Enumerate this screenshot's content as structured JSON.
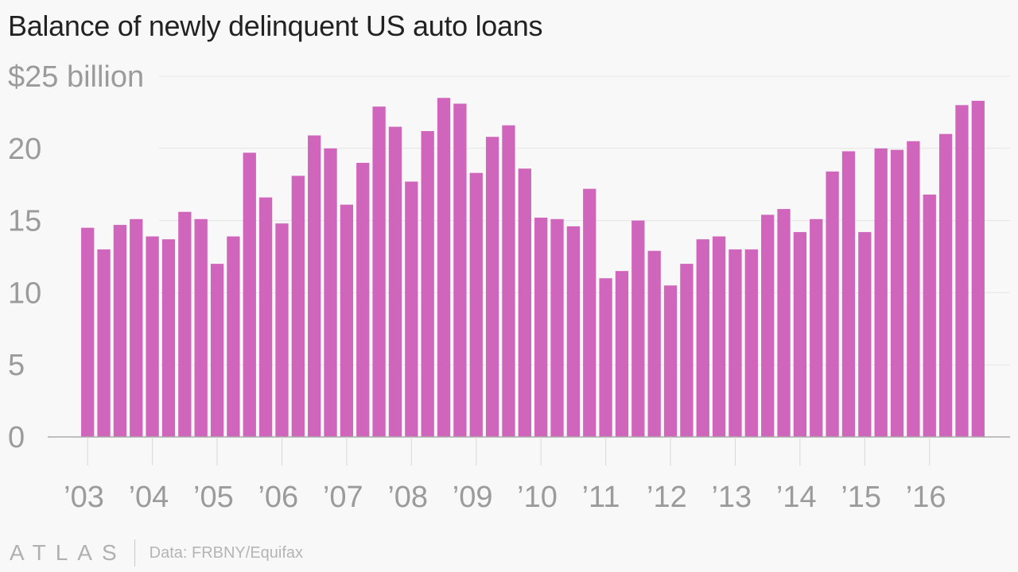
{
  "chart_data": {
    "type": "bar",
    "title": "Balance of newly delinquent US auto loans",
    "unit_label": "$25 billion",
    "ylim": [
      0,
      25
    ],
    "yticks": [
      {
        "value": 0,
        "label": "0"
      },
      {
        "value": 5,
        "label": "5"
      },
      {
        "value": 10,
        "label": "10"
      },
      {
        "value": 15,
        "label": "15"
      },
      {
        "value": 20,
        "label": "20"
      },
      {
        "value": 25,
        "label": "$25 billion"
      }
    ],
    "grid": true,
    "xtick_labels": [
      "’03",
      "’04",
      "’05",
      "’06",
      "’07",
      "’08",
      "’09",
      "’10",
      "’11",
      "’12",
      "’13",
      "’14",
      "’15",
      "’16"
    ],
    "values": [
      14.5,
      13.0,
      14.7,
      15.1,
      13.9,
      13.7,
      15.6,
      15.1,
      12.0,
      13.9,
      19.7,
      16.6,
      14.8,
      18.1,
      20.9,
      20.0,
      16.1,
      19.0,
      22.9,
      21.5,
      17.7,
      21.2,
      23.5,
      23.1,
      18.3,
      20.8,
      21.6,
      18.6,
      15.2,
      15.1,
      14.6,
      17.2,
      11.0,
      11.5,
      15.0,
      12.9,
      10.5,
      12.0,
      13.7,
      13.9,
      13.0,
      13.0,
      15.4,
      15.8,
      14.2,
      15.1,
      18.4,
      19.8,
      14.2,
      20.0,
      19.9,
      20.5,
      16.8,
      21.0,
      23.0,
      23.3
    ],
    "bar_color": "#d066bb"
  },
  "footer": {
    "logo": "ATLAS",
    "source": "Data: FRBNY/Equifax"
  }
}
